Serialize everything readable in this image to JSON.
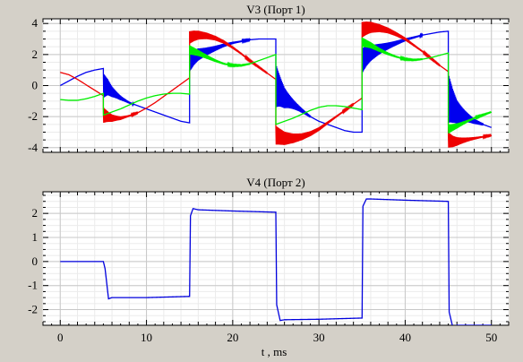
{
  "chart_data": [
    {
      "type": "line",
      "title": "V3 (Порт 1)",
      "xlabel": "",
      "ylabel": "",
      "xlim": [
        -2,
        52
      ],
      "ylim": [
        -4.3,
        4.3
      ],
      "x_ticks": [
        0,
        10,
        20,
        30,
        40,
        50
      ],
      "x_tick_labels": [
        "",
        "",
        "",
        "",
        "",
        ""
      ],
      "y_ticks": [
        -4,
        -2,
        0,
        2,
        4
      ],
      "y_tick_labels": [
        "-4",
        "-2",
        "0",
        "2",
        "4"
      ],
      "grid": true,
      "series": [
        {
          "color": "#0000ee",
          "x": [
            0,
            1,
            2,
            3,
            4,
            5,
            5,
            5.5,
            6,
            7,
            8,
            9,
            10,
            11,
            12,
            13,
            14,
            15,
            15,
            15.5,
            16,
            17,
            18,
            19,
            20,
            21,
            22,
            23,
            24,
            25,
            25,
            25.5,
            26,
            27,
            28,
            29,
            30,
            31,
            32,
            33,
            34,
            35,
            35,
            35.5,
            36,
            37,
            38,
            39,
            40,
            41,
            42,
            43,
            44,
            45,
            45,
            45.5,
            46,
            47,
            48,
            49,
            50
          ],
          "y": [
            0,
            0.3,
            0.6,
            0.85,
            1.0,
            1.1,
            0,
            -0.1,
            -0.4,
            -0.8,
            -1.1,
            -1.3,
            -1.5,
            -1.7,
            -1.9,
            -2.1,
            -2.3,
            -2.4,
            1.5,
            1.8,
            2.0,
            2.2,
            2.4,
            2.6,
            2.75,
            2.85,
            2.95,
            3.0,
            3.0,
            3.0,
            0,
            -0.4,
            -0.8,
            -1.2,
            -1.6,
            -2.0,
            -2.3,
            -2.5,
            -2.7,
            -2.9,
            -3.0,
            -3.0,
            1.6,
            1.9,
            2.1,
            2.35,
            2.55,
            2.75,
            2.95,
            3.1,
            3.25,
            3.35,
            3.45,
            3.5,
            -0.8,
            -1.3,
            -1.7,
            -2.0,
            -2.3,
            -2.5,
            -2.7
          ],
          "oscillation_windows": [
            [
              5,
              8.5,
              0.8
            ],
            [
              15,
              22,
              0.6
            ],
            [
              25,
              29,
              1.4
            ],
            [
              35,
              42,
              0.8
            ],
            [
              45,
              49,
              1.6
            ]
          ]
        },
        {
          "color": "#ee0000",
          "x": [
            0,
            1,
            2,
            3,
            4,
            5,
            5,
            5.5,
            6,
            7,
            8,
            9,
            10,
            11,
            12,
            13,
            14,
            15,
            15,
            15.5,
            16,
            17,
            18,
            19,
            20,
            21,
            22,
            23,
            24,
            25,
            25,
            25.5,
            26,
            27,
            28,
            29,
            30,
            31,
            32,
            33,
            34,
            35,
            35,
            35.5,
            36,
            37,
            38,
            39,
            40,
            41,
            42,
            43,
            44,
            45,
            45,
            45.5,
            46,
            47,
            48,
            49,
            50
          ],
          "y": [
            0.85,
            0.7,
            0.4,
            0.05,
            -0.3,
            -0.65,
            -1.9,
            -2.0,
            -2.1,
            -2.1,
            -1.95,
            -1.75,
            -1.45,
            -1.1,
            -0.7,
            -0.3,
            0.1,
            0.5,
            3.1,
            3.2,
            3.25,
            3.2,
            3.05,
            2.8,
            2.45,
            2.05,
            1.6,
            1.2,
            0.8,
            0.4,
            -3.2,
            -3.3,
            -3.4,
            -3.4,
            -3.3,
            -3.1,
            -2.8,
            -2.4,
            -2.0,
            -1.6,
            -1.2,
            -0.8,
            3.6,
            3.7,
            3.75,
            3.7,
            3.55,
            3.3,
            3.0,
            2.6,
            2.2,
            1.75,
            1.3,
            0.9,
            -3.5,
            -3.6,
            -3.6,
            -3.5,
            -3.4,
            -3.3,
            -3.2
          ],
          "oscillation_windows": [
            [
              5,
              9,
              0.5
            ],
            [
              15,
              24,
              0.4
            ],
            [
              25,
              34,
              0.6
            ],
            [
              35,
              44,
              0.5
            ],
            [
              45,
              50,
              0.5
            ]
          ]
        },
        {
          "color": "#00ee00",
          "x": [
            0,
            1,
            2,
            3,
            4,
            5,
            5,
            6,
            7,
            8,
            9,
            10,
            11,
            12,
            13,
            14,
            15,
            15,
            16,
            17,
            18,
            19,
            20,
            21,
            22,
            23,
            24,
            25,
            25,
            26,
            27,
            28,
            29,
            30,
            31,
            32,
            33,
            34,
            35,
            35,
            36,
            37,
            38,
            39,
            40,
            41,
            42,
            43,
            44,
            45,
            45,
            46,
            47,
            48,
            49,
            50
          ],
          "y": [
            -0.9,
            -0.95,
            -0.95,
            -0.85,
            -0.7,
            -0.5,
            -1.9,
            -1.7,
            -1.5,
            -1.25,
            -1.0,
            -0.8,
            -0.65,
            -0.55,
            -0.5,
            -0.5,
            -0.55,
            2.3,
            2.1,
            1.85,
            1.6,
            1.4,
            1.3,
            1.3,
            1.4,
            1.6,
            1.8,
            2.0,
            -2.5,
            -2.3,
            -2.1,
            -1.85,
            -1.6,
            -1.4,
            -1.3,
            -1.3,
            -1.35,
            -1.45,
            -1.55,
            2.8,
            2.6,
            2.3,
            2.05,
            1.85,
            1.7,
            1.65,
            1.7,
            1.8,
            1.95,
            2.1,
            -2.8,
            -2.6,
            -2.35,
            -2.1,
            -1.9,
            -1.7
          ],
          "oscillation_windows": [
            [
              15,
              22,
              0.3
            ],
            [
              35,
              42,
              0.3
            ],
            [
              45,
              50,
              0.3
            ]
          ]
        }
      ]
    },
    {
      "type": "line",
      "title": "V4 (Порт 2)",
      "xlabel": "t , ms",
      "ylabel": "",
      "xlim": [
        -2,
        52
      ],
      "ylim": [
        -2.65,
        2.9
      ],
      "x_ticks": [
        0,
        10,
        20,
        30,
        40,
        50
      ],
      "x_tick_labels": [
        "0",
        "10",
        "20",
        "30",
        "40",
        "50"
      ],
      "y_ticks": [
        -2,
        -1,
        0,
        1,
        2
      ],
      "y_tick_labels": [
        "-2",
        "-1",
        "0",
        "1",
        "2"
      ],
      "grid": true,
      "series": [
        {
          "color": "#0000dd",
          "x": [
            0,
            5,
            5.2,
            5.6,
            6,
            10,
            15,
            15.1,
            15.4,
            16,
            20,
            25,
            25.1,
            25.5,
            26,
            30,
            35,
            35.1,
            35.5,
            36,
            40,
            45,
            45.1,
            45.5,
            46,
            50
          ],
          "y": [
            0,
            0,
            -0.3,
            -1.55,
            -1.5,
            -1.5,
            -1.45,
            1.9,
            2.2,
            2.15,
            2.1,
            2.05,
            -1.8,
            -2.45,
            -2.42,
            -2.4,
            -2.35,
            2.3,
            2.6,
            2.6,
            2.55,
            2.5,
            -2.1,
            -2.7,
            -2.65,
            -2.65
          ]
        }
      ]
    }
  ]
}
